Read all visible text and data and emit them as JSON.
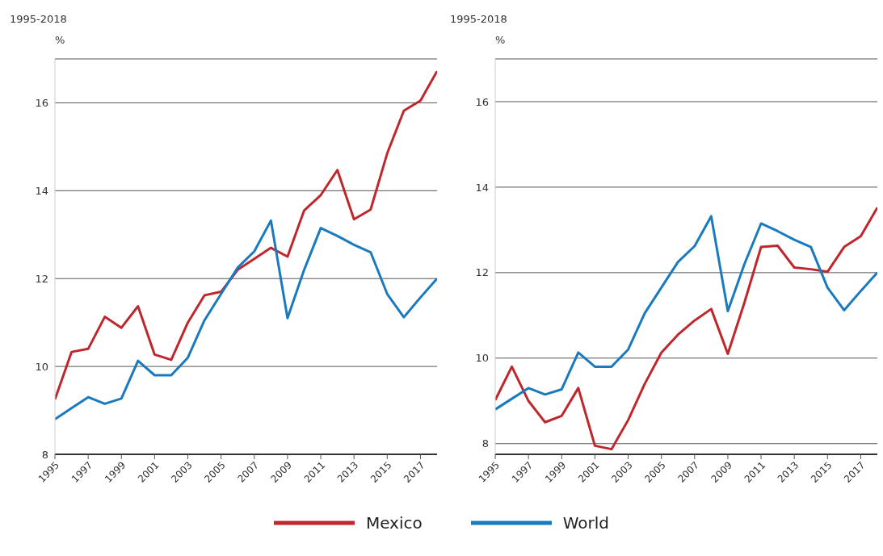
{
  "chart_data": [
    {
      "type": "line",
      "title": "1995-2018",
      "ylabel": "%",
      "x": [
        1995,
        1996,
        1997,
        1998,
        1999,
        2000,
        2001,
        2002,
        2003,
        2004,
        2005,
        2006,
        2007,
        2008,
        2009,
        2010,
        2011,
        2012,
        2013,
        2014,
        2015,
        2016,
        2017,
        2018
      ],
      "series": [
        {
          "name": "Mexico",
          "color": "#c0272d",
          "values": [
            9.25,
            10.33,
            10.4,
            11.13,
            10.88,
            11.37,
            10.27,
            10.15,
            11.0,
            11.62,
            11.7,
            12.2,
            12.45,
            12.7,
            12.5,
            13.55,
            13.9,
            14.47,
            13.35,
            13.57,
            14.85,
            15.82,
            16.05,
            16.72
          ]
        },
        {
          "name": "World",
          "color": "#1a7abf",
          "values": [
            8.8,
            9.05,
            9.3,
            9.15,
            9.27,
            10.13,
            9.8,
            9.8,
            10.2,
            11.05,
            11.65,
            12.25,
            12.62,
            13.32,
            11.1,
            12.2,
            13.15,
            12.97,
            12.77,
            12.6,
            11.65,
            11.12,
            11.57,
            12.0
          ]
        }
      ],
      "xlim": [
        1995,
        2018
      ],
      "xticks": [
        1995,
        1997,
        1999,
        2001,
        2003,
        2005,
        2007,
        2009,
        2011,
        2013,
        2015,
        2017
      ],
      "ylim": [
        8,
        17
      ],
      "yticks": [
        8,
        10,
        12,
        14,
        16
      ],
      "grid": "y",
      "legend": "bottom",
      "marker": "none",
      "line_style": "solid"
    },
    {
      "type": "line",
      "title": "1995-2018",
      "ylabel": "%",
      "x": [
        1995,
        1996,
        1997,
        1998,
        1999,
        2000,
        2001,
        2002,
        2003,
        2004,
        2005,
        2006,
        2007,
        2008,
        2009,
        2010,
        2011,
        2012,
        2013,
        2014,
        2015,
        2016,
        2017,
        2018
      ],
      "series": [
        {
          "color": "#c0272d",
          "values": [
            9.02,
            9.8,
            9.0,
            8.5,
            8.65,
            9.3,
            7.95,
            7.87,
            8.55,
            9.4,
            10.13,
            10.55,
            10.88,
            11.15,
            10.1,
            11.3,
            12.6,
            12.63,
            12.12,
            12.08,
            12.02,
            12.6,
            12.85,
            13.52
          ]
        },
        {
          "color": "#1a7abf",
          "values": [
            8.8,
            9.05,
            9.3,
            9.15,
            9.27,
            10.13,
            9.8,
            9.8,
            10.2,
            11.05,
            11.65,
            12.25,
            12.62,
            13.32,
            11.1,
            12.2,
            13.15,
            12.97,
            12.77,
            12.6,
            11.65,
            11.12,
            11.57,
            12.0
          ]
        }
      ],
      "xlim": [
        1995,
        2018
      ],
      "xticks": [
        1995,
        1997,
        1999,
        2001,
        2003,
        2005,
        2007,
        2009,
        2011,
        2013,
        2015,
        2017
      ],
      "ylim": [
        7.75,
        17
      ],
      "yticks": [
        8,
        10,
        12,
        14,
        16
      ],
      "grid": "y",
      "marker": "none",
      "line_style": "solid"
    }
  ]
}
